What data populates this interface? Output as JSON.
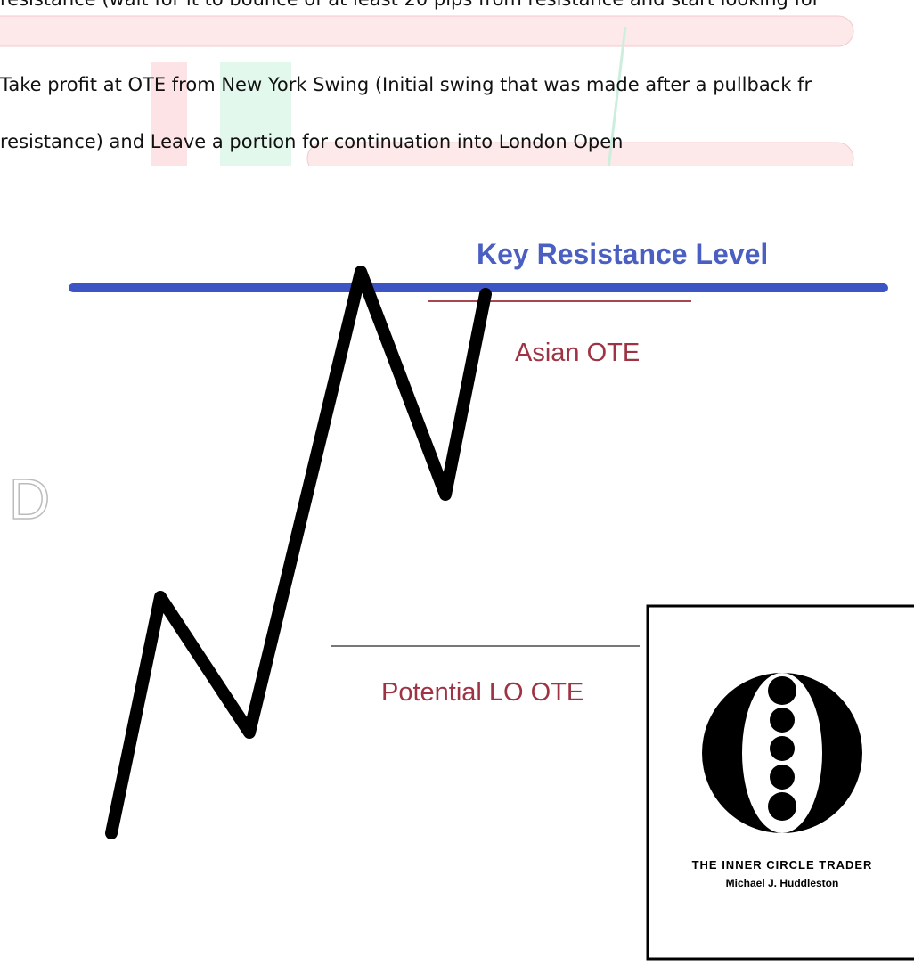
{
  "document": {
    "paragraph_lines": [
      "resistance (wait for it to bounce of at least 20 pips from resistance and start looking for",
      "Take profit at OTE from New York Swing (Initial swing that was made after a pullback fr",
      "resistance) and Leave a portion for continuation into London Open"
    ],
    "figure": {
      "labels": {
        "key_level": "Key Resistance Level",
        "asian_ote": "Asian OTE",
        "lo_ote": "Potential LO OTE"
      },
      "side_letter": "D",
      "logo": {
        "title": "THE INNER CIRCLE TRADER",
        "author": "Michael J. Huddleston"
      }
    }
  }
}
